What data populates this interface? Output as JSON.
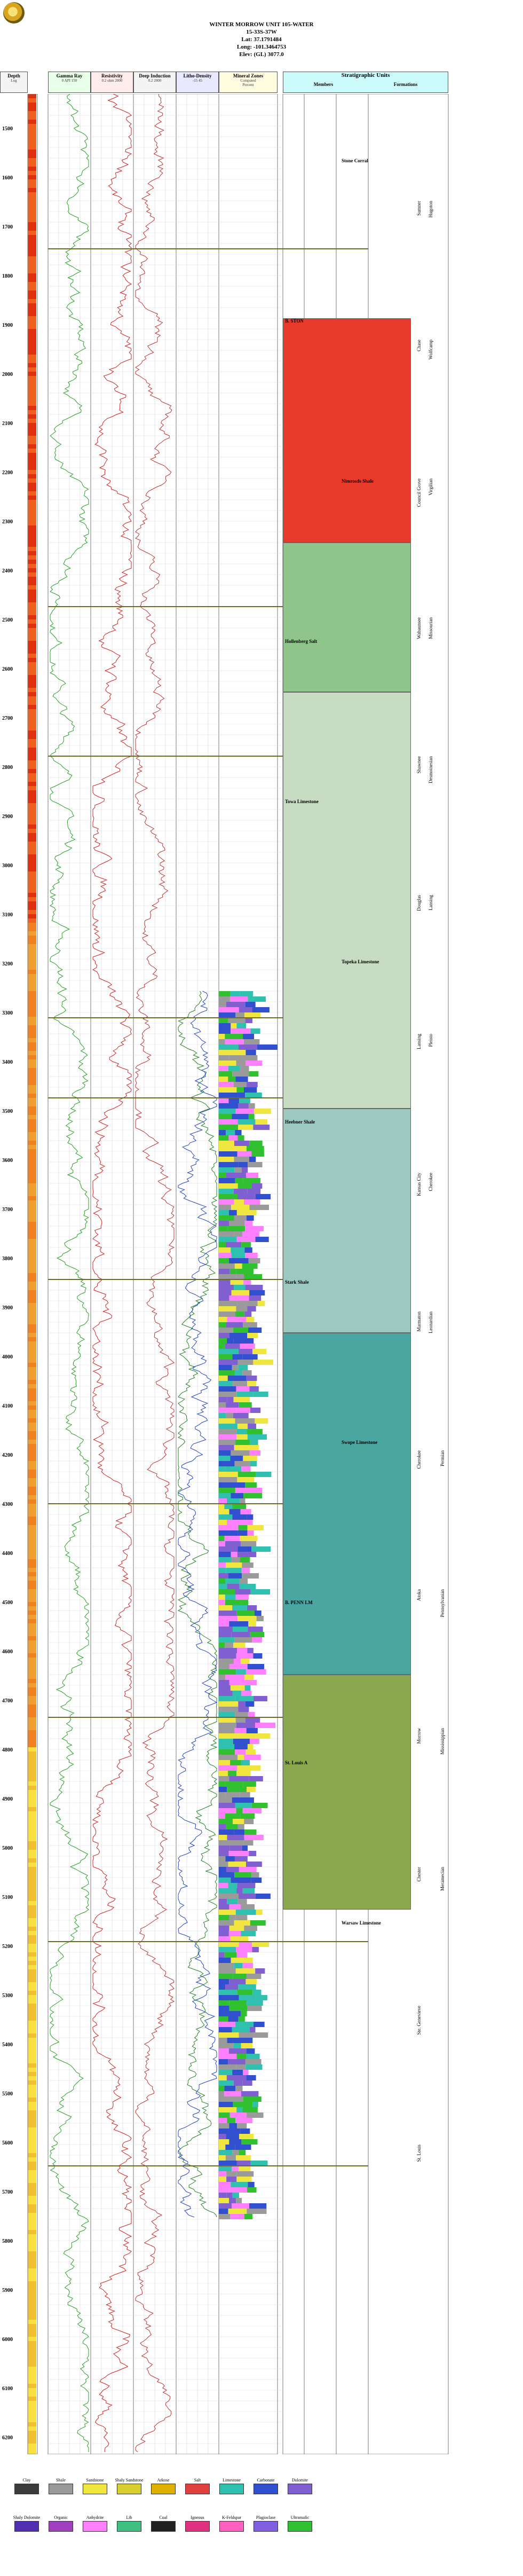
{
  "header": {
    "well_name": "WINTER MORROW UNIT 105-WATER",
    "location": "15-33S-37W",
    "lat": "Lat: 37.1791484",
    "long": "Long: -101.3464753",
    "elev": "Elev: (GL) 3077.0"
  },
  "columns": {
    "depth": {
      "title": "Depth",
      "sub": "Log"
    },
    "gr": {
      "title": "Gamma Ray",
      "scale": "0 API 150"
    },
    "res": {
      "title": "Resistivity",
      "scale": "0.2 ohm 2000"
    },
    "ind": {
      "title": "Deep Induction",
      "scale": "0.2 2000"
    },
    "litho": {
      "title": "Litho-Density",
      "scale": "-15 45"
    },
    "core": {
      "title": "Mineral Zones",
      "sub": "Computed",
      "sub2": "Rock Column",
      "sub3": "Percent"
    },
    "strat": {
      "title": "Stratigraphic Units",
      "members": "Members",
      "formations": "Formations"
    }
  },
  "depth_labels": [
    "1500",
    "1600",
    "1700",
    "1800",
    "1900",
    "2000",
    "2100",
    "2200",
    "2300",
    "2400",
    "2500",
    "2600",
    "2700",
    "2800",
    "2900",
    "3000",
    "3100",
    "3200",
    "3300",
    "3400",
    "3500",
    "3600",
    "3700",
    "3800",
    "3900",
    "4000",
    "4100",
    "4200",
    "4300",
    "4400",
    "4500",
    "4600",
    "4700",
    "4800",
    "4900",
    "5000",
    "5100",
    "5200",
    "5300",
    "5400",
    "5500",
    "5600",
    "5700",
    "5800",
    "5900",
    "6000",
    "6100",
    "6200"
  ],
  "tops": [
    {
      "name": "Stone Corral",
      "col": "formation"
    },
    {
      "name": "B. STON",
      "col": "member"
    },
    {
      "name": "Nimrosds Shale",
      "col": "formation"
    },
    {
      "name": "Hollenberg Salt",
      "col": "member"
    },
    {
      "name": "Towa Limestone",
      "col": "member"
    },
    {
      "name": "Topeka Limestone",
      "col": "formation"
    },
    {
      "name": "Heebner Shale",
      "col": "member"
    },
    {
      "name": "Stark Shale",
      "col": "member"
    },
    {
      "name": "Swope Limestone",
      "col": "formation"
    },
    {
      "name": "B. PENN LM",
      "col": "member"
    },
    {
      "name": "St. Louis A",
      "col": "member"
    },
    {
      "name": "Warsaw Limestone",
      "col": "formation"
    }
  ],
  "strat_labels": [
    "Sumner",
    "Chase",
    "Council Grove",
    "Wabaunsee",
    "Shawnee",
    "Douglas",
    "Lansing",
    "Kansas City",
    "Marmaton",
    "Cherokee",
    "Atoka",
    "Morrow",
    "Chester",
    "Ste. Genevieve",
    "St. Louis",
    "Hugoton",
    "Wolfcamp",
    "Virgilian",
    "Missourian",
    "Desmoinesian",
    "Lansing",
    "Pleisto",
    "Cherokee",
    "Leonardian",
    "Permian",
    "Pennsylvanian",
    "Mississippian",
    "Meramecian"
  ],
  "legend": {
    "row1": [
      "Clay",
      "Shale",
      "Sandstone",
      "Shaly Sandstone",
      "Arkose",
      "Salt",
      "Limestone",
      "Carbonate",
      "Dolomite"
    ],
    "row2": [
      "Shaly Dolomite",
      "Organic",
      "Anhydrite",
      "Lib",
      "Coal",
      "Igneous",
      "K-Feldspar",
      "Plagioclase",
      "Ultramafic"
    ],
    "colors": [
      "#3c3c3c",
      "#9a9a9a",
      "#f0e640",
      "#d8d030",
      "#e0b000",
      "#e04040",
      "#30c0b0",
      "#3050d0",
      "#8060d0",
      "#5030b0",
      "#a040c0",
      "#ff80ff",
      "#40c080",
      "#202020",
      "#e03080",
      "#ff60c0",
      "#8060e0",
      "#30c030"
    ]
  }
}
